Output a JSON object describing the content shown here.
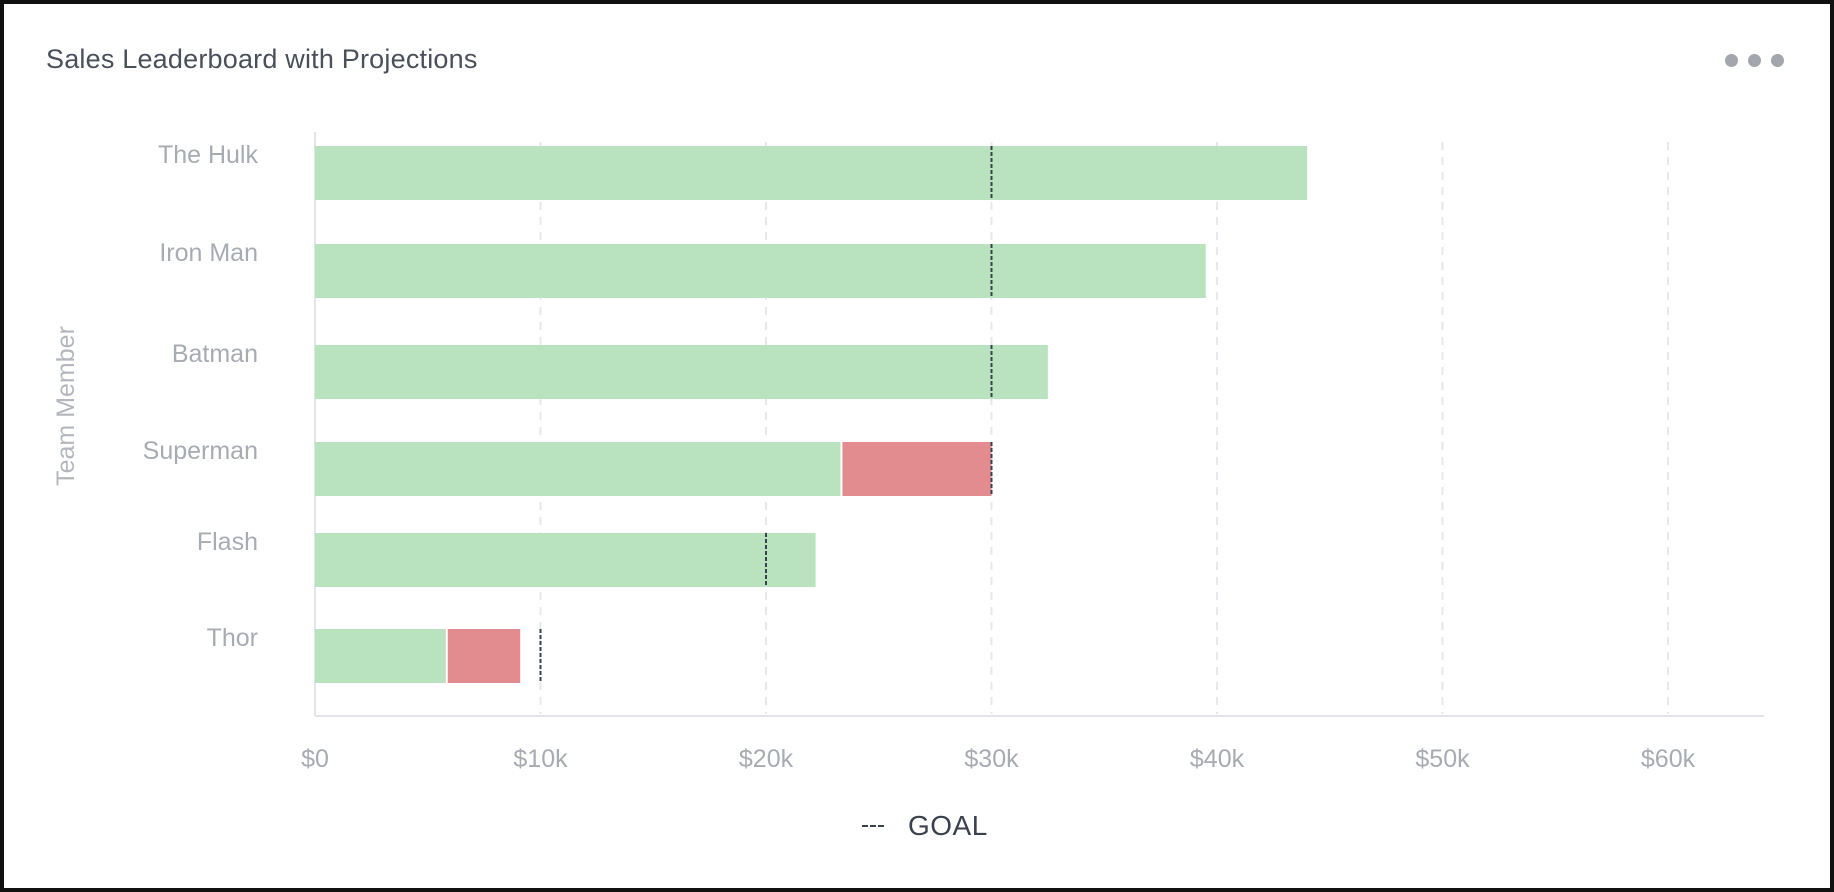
{
  "header": {
    "title": "Sales Leaderboard with Projections"
  },
  "menu": {
    "icon": "more-horizontal-icon"
  },
  "legend": {
    "goal_label": "GOAL"
  },
  "colors": {
    "actual": "#b9e3bf",
    "shortfall": "#e28c8f",
    "goal_marker": "#3a414e",
    "grid": "#e6e8eb"
  },
  "chart_data": {
    "type": "bar",
    "orientation": "horizontal",
    "stacked": true,
    "title": "Sales Leaderboard with Projections",
    "xlabel": "",
    "ylabel": "Team Member",
    "xlim": [
      0,
      64000
    ],
    "x_ticks": [
      0,
      10000,
      20000,
      30000,
      40000,
      50000,
      60000
    ],
    "x_tick_labels": [
      "$0",
      "$10k",
      "$20k",
      "$30k",
      "$40k",
      "$50k",
      "$60k"
    ],
    "grid": true,
    "legend_position": "bottom-center",
    "categories": [
      "The Hulk",
      "Iron Man",
      "Batman",
      "Superman",
      "Flash",
      "Thor"
    ],
    "series": [
      {
        "values": [
          44000,
          39500,
          32500,
          23300,
          22200,
          5800
        ]
      },
      {
        "values": [
          0,
          0,
          0,
          6700,
          0,
          3300
        ]
      }
    ],
    "goals": [
      30000,
      30000,
      30000,
      30000,
      20000,
      10000
    ]
  }
}
